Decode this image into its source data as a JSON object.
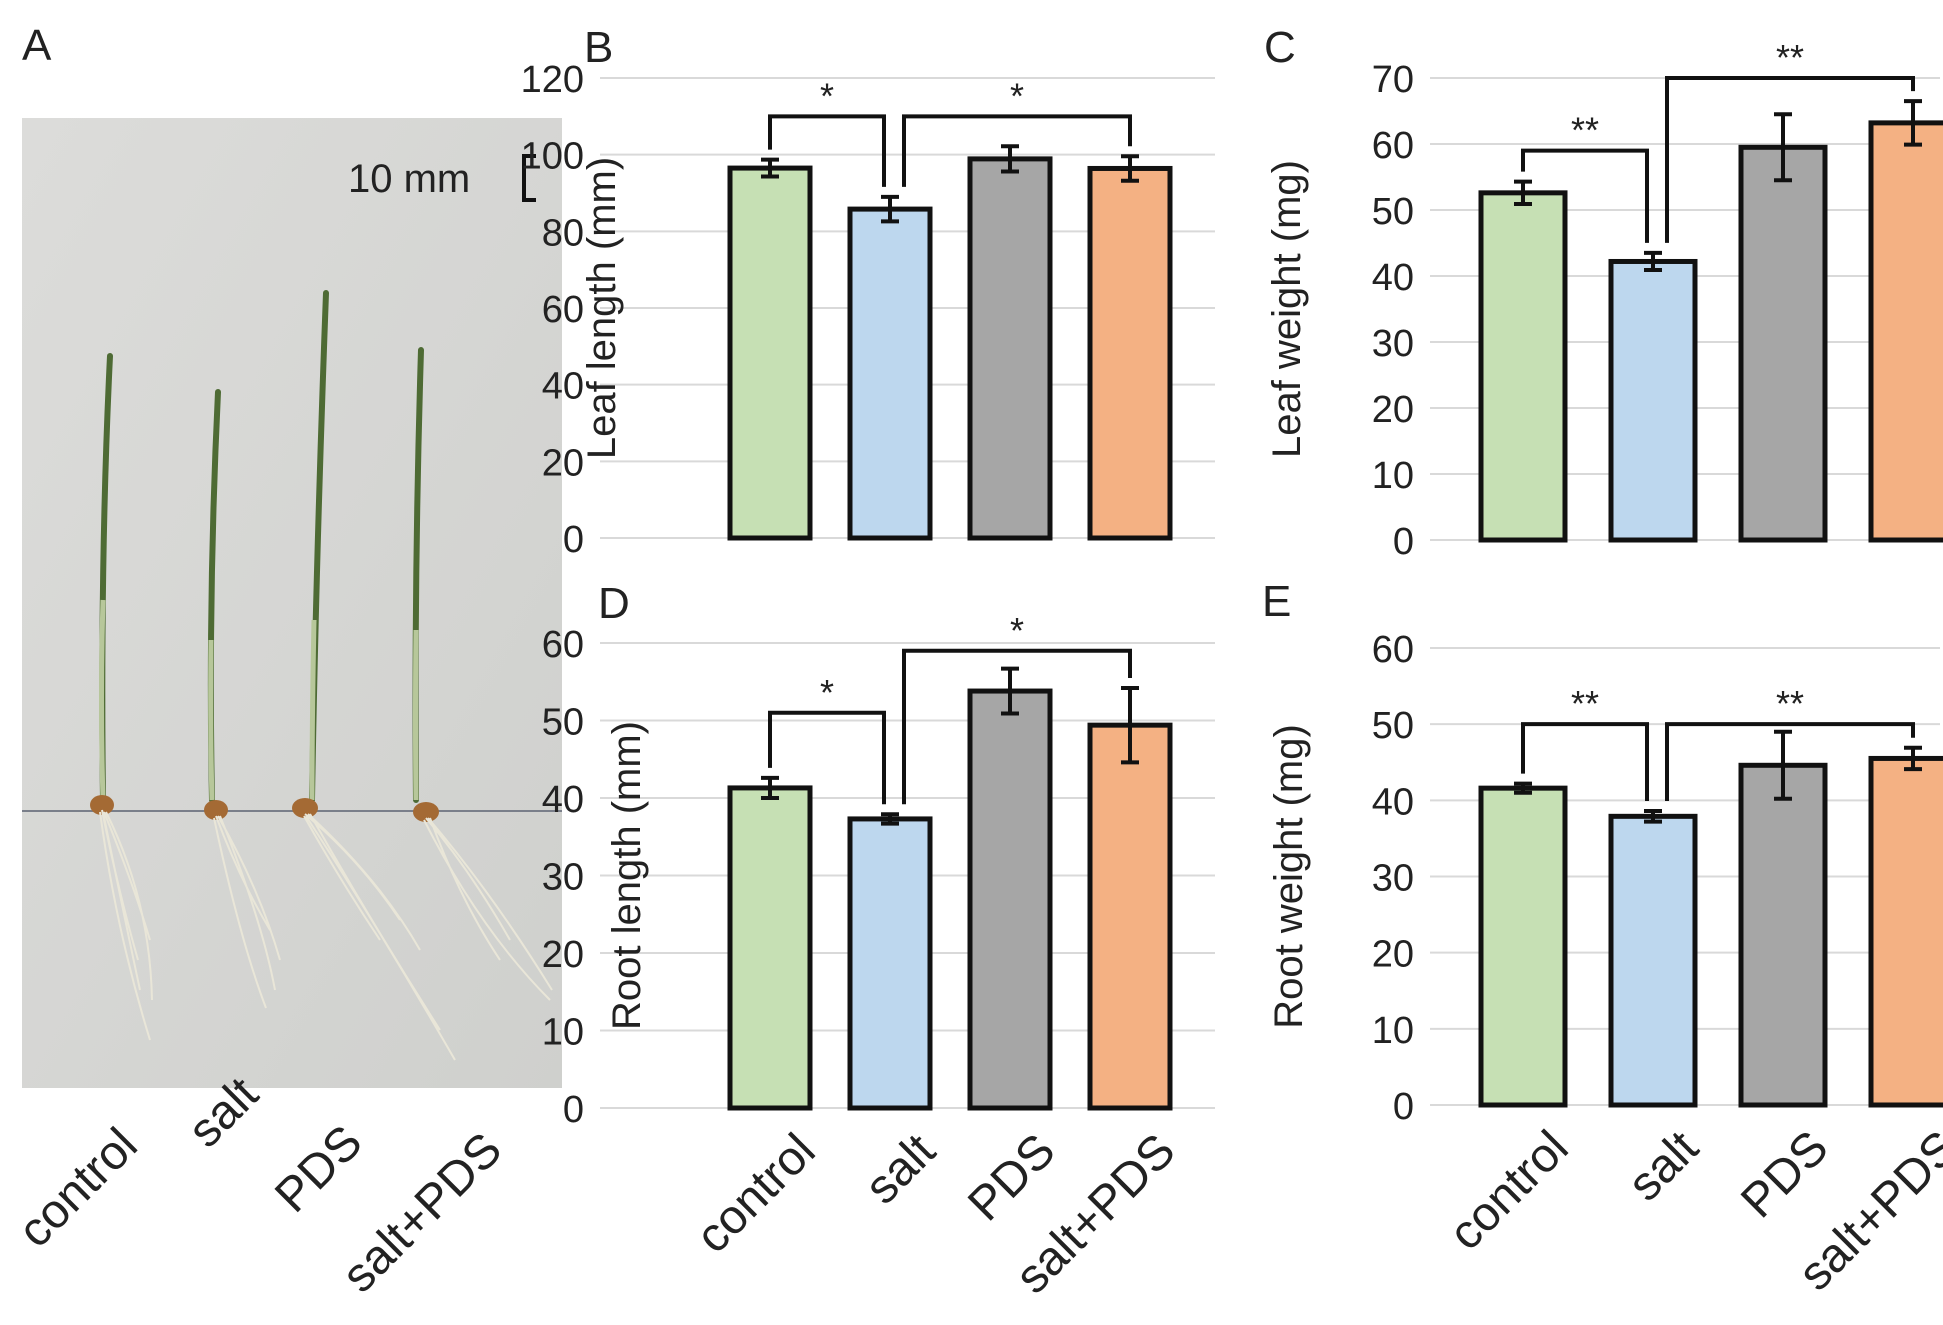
{
  "figure": {
    "panel_a": {
      "label": "A",
      "scale_bar_text": "10 mm",
      "seedling_labels": [
        "control",
        "salt",
        "PDS",
        "salt+PDS"
      ]
    }
  },
  "colors": {
    "bars": [
      "#c6e0b4",
      "#bdd7ee",
      "#a6a6a6",
      "#f4b183"
    ],
    "grid": "#d9d9d9",
    "axis_text": "#595959"
  },
  "chart_data": [
    {
      "panel": "B",
      "type": "bar",
      "ylabel": "Leaf length (mm)",
      "categories": [
        "control",
        "salt",
        "PDS",
        "salt+PDS"
      ],
      "values": [
        96.5,
        85.8,
        98.9,
        96.4
      ],
      "errors": [
        2.2,
        3.2,
        3.3,
        3.2
      ],
      "ylim": [
        0,
        120
      ],
      "yticks": [
        0,
        20,
        40,
        60,
        80,
        100,
        120
      ],
      "show_xlabels": false,
      "significance": [
        {
          "from": 0,
          "to": 1,
          "label": "*",
          "y": 110
        },
        {
          "from": 1,
          "to": 3,
          "label": "*",
          "y": 110
        }
      ]
    },
    {
      "panel": "C",
      "type": "bar",
      "ylabel": "Leaf weight (mg)",
      "categories": [
        "control",
        "salt",
        "PDS",
        "salt+PDS"
      ],
      "values": [
        52.6,
        42.2,
        59.5,
        63.2
      ],
      "errors": [
        1.7,
        1.3,
        5.0,
        3.3
      ],
      "ylim": [
        0,
        70
      ],
      "yticks": [
        0,
        10,
        20,
        30,
        40,
        50,
        60,
        70
      ],
      "show_xlabels": false,
      "significance": [
        {
          "from": 0,
          "to": 1,
          "label": "**",
          "y": 59
        },
        {
          "from": 1,
          "to": 3,
          "label": "**",
          "y": 70
        }
      ]
    },
    {
      "panel": "D",
      "type": "bar",
      "ylabel": "Root length (mm)",
      "categories": [
        "control",
        "salt",
        "PDS",
        "salt+PDS"
      ],
      "values": [
        41.3,
        37.3,
        53.8,
        49.4
      ],
      "errors": [
        1.3,
        0.6,
        2.9,
        4.8
      ],
      "ylim": [
        0,
        60
      ],
      "yticks": [
        0,
        10,
        20,
        30,
        40,
        50,
        60
      ],
      "show_xlabels": true,
      "significance": [
        {
          "from": 0,
          "to": 1,
          "label": "*",
          "y": 51
        },
        {
          "from": 1,
          "to": 3,
          "label": "*",
          "y": 59
        }
      ]
    },
    {
      "panel": "E",
      "type": "bar",
      "ylabel": "Root weight (mg)",
      "categories": [
        "control",
        "salt",
        "PDS",
        "salt+PDS"
      ],
      "values": [
        41.6,
        37.9,
        44.6,
        45.5
      ],
      "errors": [
        0.6,
        0.7,
        4.4,
        1.4
      ],
      "ylim": [
        0,
        60
      ],
      "yticks": [
        0,
        10,
        20,
        30,
        40,
        50,
        60
      ],
      "show_xlabels": true,
      "significance": [
        {
          "from": 0,
          "to": 1,
          "label": "**",
          "y": 50
        },
        {
          "from": 1,
          "to": 3,
          "label": "**",
          "y": 50
        }
      ]
    }
  ]
}
